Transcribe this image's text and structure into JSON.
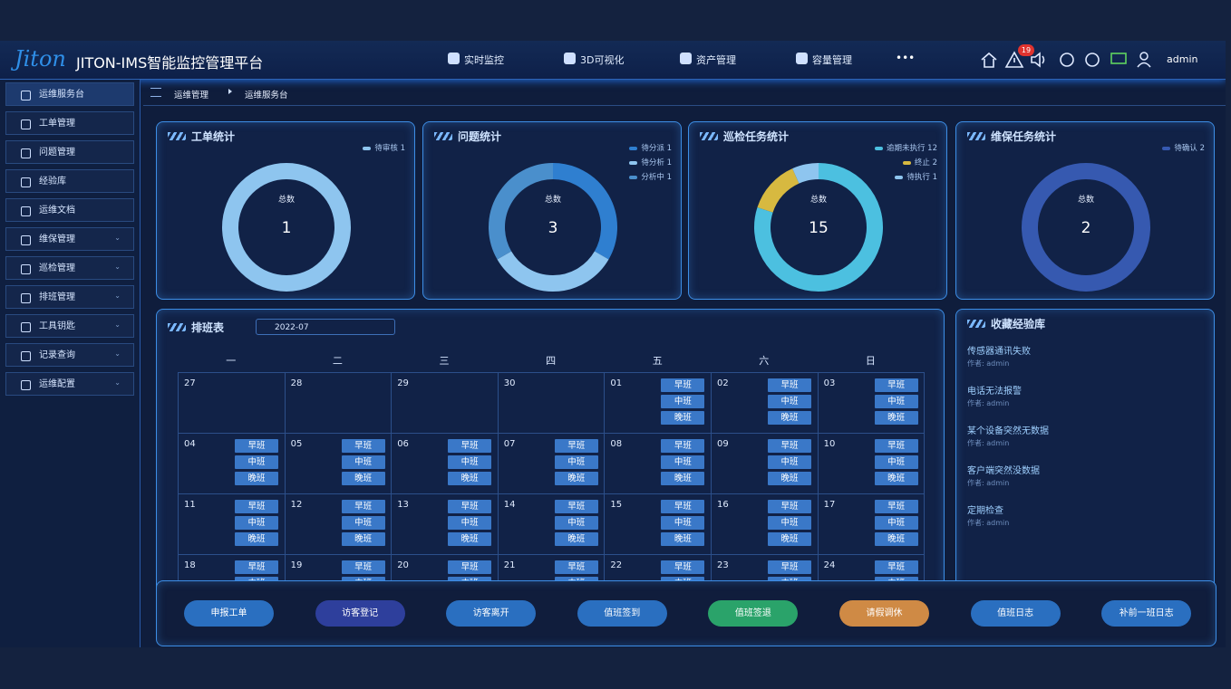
{
  "header": {
    "logo": "Jiton",
    "title": "JITON-IMS智能监控管理平台",
    "nav": [
      "实时监控",
      "3D可视化",
      "资产管理",
      "容量管理"
    ],
    "more": "•••",
    "alert_count": 19,
    "user": "admin"
  },
  "sidebar": {
    "items": [
      {
        "label": "运维服务台",
        "expand": false
      },
      {
        "label": "工单管理",
        "expand": false
      },
      {
        "label": "问题管理",
        "expand": false
      },
      {
        "label": "经验库",
        "expand": false
      },
      {
        "label": "运维文档",
        "expand": false
      },
      {
        "label": "维保管理",
        "expand": true
      },
      {
        "label": "巡检管理",
        "expand": true
      },
      {
        "label": "排班管理",
        "expand": true
      },
      {
        "label": "工具钥匙",
        "expand": true
      },
      {
        "label": "记录查询",
        "expand": true
      },
      {
        "label": "运维配置",
        "expand": true
      }
    ]
  },
  "breadcrumb": [
    "运维管理",
    "运维服务台"
  ],
  "stats": [
    {
      "title": "工单统计",
      "total_label": "总数",
      "total": 1,
      "legend": [
        {
          "label": "待审核",
          "count": 1,
          "color": "#8ec5ef"
        }
      ]
    },
    {
      "title": "问题统计",
      "total_label": "总数",
      "total": 3,
      "legend": [
        {
          "label": "待分派",
          "count": 1,
          "color": "#2f7fd0"
        },
        {
          "label": "待分析",
          "count": 1,
          "color": "#8ec5ef"
        },
        {
          "label": "分析中",
          "count": 1,
          "color": "#4a8fcc"
        }
      ]
    },
    {
      "title": "巡检任务统计",
      "total_label": "总数",
      "total": 15,
      "legend": [
        {
          "label": "逾期未执行",
          "count": 12,
          "color": "#4cc0e0"
        },
        {
          "label": "终止",
          "count": 2,
          "color": "#d7b940"
        },
        {
          "label": "待执行",
          "count": 1,
          "color": "#8ec5ef"
        }
      ]
    },
    {
      "title": "维保任务统计",
      "total_label": "总数",
      "total": 2,
      "legend": [
        {
          "label": "待确认",
          "count": 2,
          "color": "#3659b0"
        }
      ]
    }
  ],
  "schedule": {
    "title": "排班表",
    "month": "2022-07",
    "weekdays": [
      "一",
      "二",
      "三",
      "四",
      "五",
      "六",
      "日"
    ],
    "shifts": [
      "早班",
      "中班",
      "晚班"
    ],
    "weeks": [
      [
        {
          "day": "27",
          "duty": false
        },
        {
          "day": "28",
          "duty": false
        },
        {
          "day": "29",
          "duty": false
        },
        {
          "day": "30",
          "duty": false
        },
        {
          "day": "01",
          "duty": true
        },
        {
          "day": "02",
          "duty": true
        },
        {
          "day": "03",
          "duty": true
        }
      ],
      [
        {
          "day": "04",
          "duty": true
        },
        {
          "day": "05",
          "duty": true
        },
        {
          "day": "06",
          "duty": true
        },
        {
          "day": "07",
          "duty": true
        },
        {
          "day": "08",
          "duty": true
        },
        {
          "day": "09",
          "duty": true
        },
        {
          "day": "10",
          "duty": true
        }
      ],
      [
        {
          "day": "11",
          "duty": true
        },
        {
          "day": "12",
          "duty": true
        },
        {
          "day": "13",
          "duty": true
        },
        {
          "day": "14",
          "duty": true
        },
        {
          "day": "15",
          "duty": true
        },
        {
          "day": "16",
          "duty": true
        },
        {
          "day": "17",
          "duty": true
        }
      ],
      [
        {
          "day": "18",
          "duty": true
        },
        {
          "day": "19",
          "duty": true
        },
        {
          "day": "20",
          "duty": true
        },
        {
          "day": "21",
          "duty": true
        },
        {
          "day": "22",
          "duty": true
        },
        {
          "day": "23",
          "duty": true
        },
        {
          "day": "24",
          "duty": true
        }
      ]
    ]
  },
  "favorites": {
    "title": "收藏经验库",
    "items": [
      {
        "title": "传感器通讯失败",
        "author": "作者: admin"
      },
      {
        "title": "电话无法报警",
        "author": "作者: admin"
      },
      {
        "title": "某个设备突然无数据",
        "author": "作者: admin"
      },
      {
        "title": "客户端突然没数据",
        "author": "作者: admin"
      },
      {
        "title": "定期检查",
        "author": "作者: admin"
      }
    ]
  },
  "actions": [
    "申报工单",
    "访客登记",
    "访客离开",
    "值班签到",
    "值班签退",
    "请假调休",
    "值班日志",
    "补前一班日志"
  ]
}
